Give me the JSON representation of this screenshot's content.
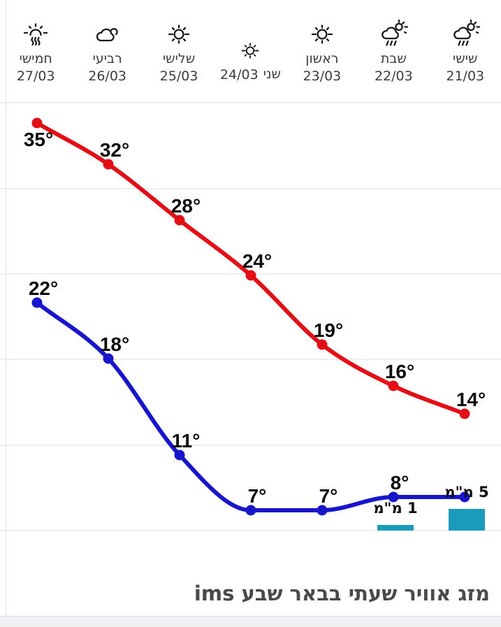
{
  "header": {
    "days": [
      {
        "name": "חמישי",
        "date": "27/03",
        "icon": "sun-heat",
        "inline": false
      },
      {
        "name": "רביעי",
        "date": "26/03",
        "icon": "cloud",
        "inline": false
      },
      {
        "name": "שלישי",
        "date": "25/03",
        "icon": "sun",
        "inline": false
      },
      {
        "name": "שני",
        "date": "24/03",
        "icon": "sun",
        "inline": true
      },
      {
        "name": "ראשון",
        "date": "23/03",
        "icon": "sun",
        "inline": false
      },
      {
        "name": "שבת",
        "date": "22/03",
        "icon": "sun-rain",
        "inline": false
      },
      {
        "name": "שישי",
        "date": "21/03",
        "icon": "sun-rain",
        "inline": false
      }
    ]
  },
  "chart_data": {
    "type": "line",
    "title": "מזג אוויר שעתי בבאר שבע ims",
    "direction": "rtl",
    "categories": [
      "27/03",
      "26/03",
      "25/03",
      "24/03",
      "23/03",
      "22/03",
      "21/03"
    ],
    "grid": true,
    "series": [
      {
        "name": "daily-high",
        "color": "#e20f17",
        "values": [
          35,
          32,
          28,
          24,
          19,
          16,
          14
        ],
        "point_labels": [
          "35°",
          "32°",
          "28°",
          "24°",
          "19°",
          "16°",
          "14°"
        ]
      },
      {
        "name": "daily-low",
        "color": "#1816cb",
        "values": [
          22,
          18,
          11,
          7,
          7,
          8,
          8
        ],
        "point_labels": [
          "22°",
          "18°",
          "11°",
          "7°",
          "7°",
          "8°",
          ""
        ]
      }
    ],
    "precipitation": {
      "color": "#1a9bbc",
      "unit": "מ\"מ",
      "bars": [
        {
          "column_index": 5,
          "mm": 1,
          "label": "1 מ\"מ"
        },
        {
          "column_index": 6,
          "mm": 5,
          "label": "5 מ\"מ"
        }
      ]
    }
  },
  "footer": {
    "title": "מזג אוויר שעתי בבאר שבע ims"
  }
}
